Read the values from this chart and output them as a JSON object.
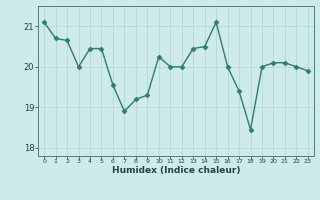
{
  "x": [
    0,
    1,
    2,
    3,
    4,
    5,
    6,
    7,
    8,
    9,
    10,
    11,
    12,
    13,
    14,
    15,
    16,
    17,
    18,
    19,
    20,
    21,
    22,
    23
  ],
  "y": [
    21.1,
    20.7,
    20.65,
    20.0,
    20.45,
    20.45,
    19.55,
    18.9,
    19.2,
    19.3,
    20.25,
    20.0,
    20.0,
    20.45,
    20.5,
    21.1,
    20.0,
    19.4,
    18.45,
    20.0,
    20.1,
    20.1,
    20.0,
    19.9
  ],
  "xlabel": "Humidex (Indice chaleur)",
  "ylim": [
    17.8,
    21.5
  ],
  "xlim": [
    -0.5,
    23.5
  ],
  "yticks": [
    18,
    19,
    20,
    21
  ],
  "xticks": [
    0,
    1,
    2,
    3,
    4,
    5,
    6,
    7,
    8,
    9,
    10,
    11,
    12,
    13,
    14,
    15,
    16,
    17,
    18,
    19,
    20,
    21,
    22,
    23
  ],
  "line_color": "#2e7d6e",
  "marker_color": "#2e7d6e",
  "bg_color": "#ceeaea",
  "grid_color": "#b0d4d4",
  "spine_color": "#4a8080",
  "tick_color": "#1e4444",
  "label_color": "#1e4444"
}
